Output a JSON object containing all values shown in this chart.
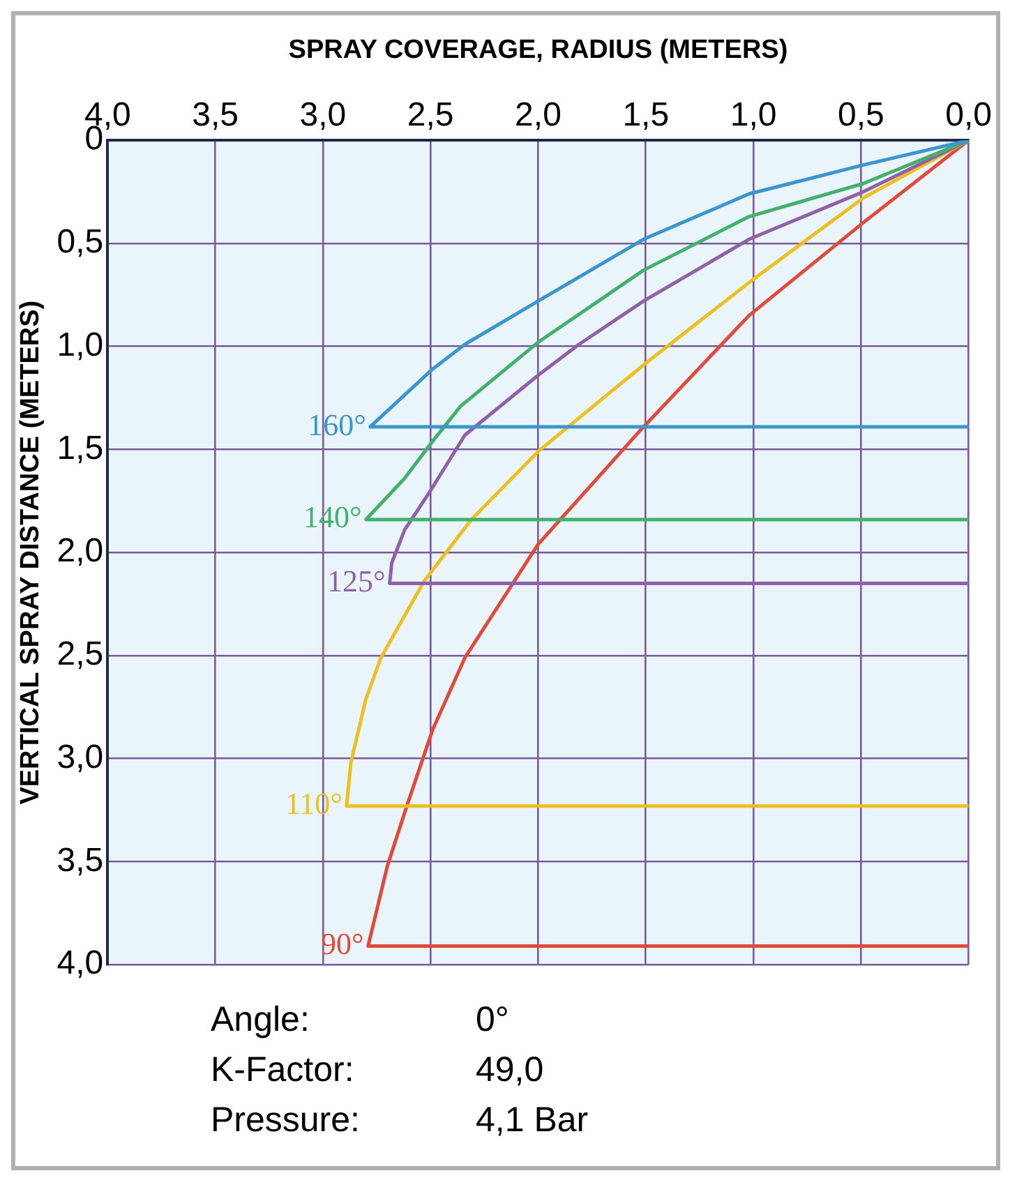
{
  "chart_data": {
    "type": "line",
    "xlabel": "SPRAY COVERAGE, RADIUS (METERS)",
    "ylabel": "VERTICAL SPRAY DISTANCE (METERS)",
    "xlim": [
      4,
      0
    ],
    "xticks": [
      {
        "value": 4,
        "label": "4,0"
      },
      {
        "value": 3.5,
        "label": "3,5"
      },
      {
        "value": 3,
        "label": "3,0"
      },
      {
        "value": 2.5,
        "label": "2,5"
      },
      {
        "value": 2,
        "label": "2,0"
      },
      {
        "value": 1.5,
        "label": "1,5"
      },
      {
        "value": 1,
        "label": "1,0"
      },
      {
        "value": 0.5,
        "label": "0,5"
      },
      {
        "value": 0,
        "label": "0,0"
      }
    ],
    "ylim": [
      4,
      0
    ],
    "yticks": [
      0,
      {
        "value": 0.5,
        "label": "0,5"
      },
      {
        "value": 1,
        "label": "1,0"
      },
      {
        "value": 1.5,
        "label": "1,5"
      },
      {
        "value": 2,
        "label": "2,0"
      },
      {
        "value": 2.5,
        "label": "2,5"
      },
      {
        "value": 3,
        "label": "3,0"
      },
      {
        "value": 3.5,
        "label": "3,5"
      },
      {
        "value": 4,
        "label": "4,0"
      }
    ],
    "grid": true,
    "legend": false,
    "marker": "none",
    "line_style": "solid",
    "series": [
      {
        "name": "160°",
        "color": "#3a96cc",
        "x": [
          0,
          0.49,
          1.02,
          1.51,
          2.0,
          2.34,
          2.49,
          2.78,
          0
        ],
        "values": [
          0,
          0.12,
          0.26,
          0.48,
          0.78,
          0.99,
          1.11,
          1.39,
          1.39
        ]
      },
      {
        "name": "140°",
        "color": "#43b06e",
        "x": [
          0,
          0.49,
          1.02,
          1.51,
          2.0,
          2.36,
          2.49,
          2.62,
          2.8,
          0
        ],
        "values": [
          0,
          0.21,
          0.37,
          0.63,
          0.98,
          1.29,
          1.46,
          1.64,
          1.84,
          1.84
        ]
      },
      {
        "name": "125°",
        "color": "#9060a8",
        "x": [
          0,
          0.49,
          1.02,
          1.51,
          1.81,
          2.0,
          2.34,
          2.5,
          2.62,
          2.68,
          2.69,
          0
        ],
        "values": [
          0,
          0.25,
          0.48,
          0.78,
          0.99,
          1.14,
          1.43,
          1.7,
          1.89,
          2.05,
          2.15,
          2.15
        ]
      },
      {
        "name": "110°",
        "color": "#ecc020",
        "x": [
          0,
          0.49,
          1.02,
          1.51,
          2.0,
          2.31,
          2.53,
          2.73,
          2.8,
          2.87,
          2.89,
          0
        ],
        "values": [
          0,
          0.28,
          0.69,
          1.09,
          1.51,
          1.84,
          2.14,
          2.51,
          2.71,
          3.02,
          3.23,
          3.23
        ]
      },
      {
        "name": "90°",
        "color": "#e04a3a",
        "x": [
          0,
          0.49,
          1.02,
          1.51,
          2.0,
          2.34,
          2.49,
          2.61,
          2.7,
          2.79,
          0
        ],
        "values": [
          0,
          0.4,
          0.85,
          1.39,
          1.96,
          2.51,
          2.86,
          3.23,
          3.52,
          3.91,
          3.91
        ]
      }
    ],
    "annotations": [
      "Angle:",
      "0°",
      "K-Factor:",
      "49,0",
      "Pressure:",
      "4,1 Bar"
    ]
  }
}
